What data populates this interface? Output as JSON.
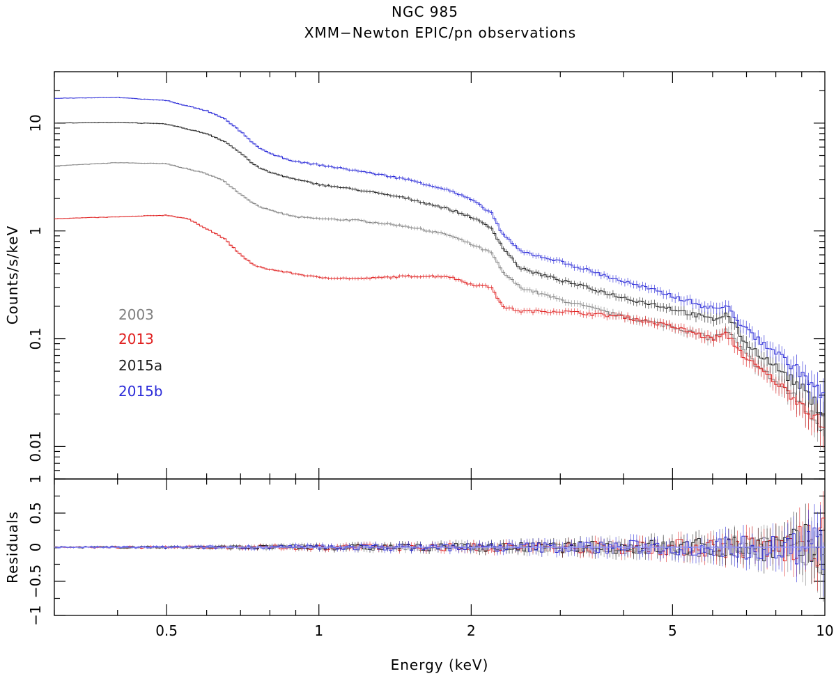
{
  "chart_data": {
    "type": "line",
    "title": "NGC 985",
    "subtitle": "XMM−Newton EPIC/pn observations",
    "xlabel": "Energy (keV)",
    "x_scale": "log",
    "xlim": [
      0.3,
      10
    ],
    "x_ticks": [
      0.5,
      1,
      2,
      5,
      10
    ],
    "x_tick_labels": [
      "0.5",
      "1",
      "2",
      "5",
      "10"
    ],
    "panels": [
      {
        "name": "spectrum",
        "ylabel": "Counts/s/keV",
        "y_scale": "log",
        "ylim": [
          0.005,
          30
        ],
        "y_ticks": [
          0.01,
          0.1,
          1,
          10
        ],
        "y_tick_labels": [
          "0.01",
          "0.1",
          "1",
          "10"
        ]
      },
      {
        "name": "residuals",
        "ylabel": "Residuals",
        "y_scale": "linear",
        "ylim": [
          -1,
          1
        ],
        "y_ticks": [
          -1,
          -0.5,
          0,
          0.5,
          1
        ],
        "y_tick_labels": [
          "−1",
          "−0.5",
          "0",
          "0.5",
          "1"
        ]
      }
    ],
    "legend_placement": "left-middle",
    "series": [
      {
        "name": "2003",
        "color": "#808080",
        "x": [
          0.3,
          0.4,
          0.5,
          0.6,
          0.65,
          0.7,
          0.75,
          0.8,
          0.9,
          1.0,
          1.2,
          1.5,
          1.8,
          2.0,
          2.2,
          2.3,
          2.5,
          3.0,
          4.0,
          5.0,
          6.0,
          6.4,
          7.0,
          8.0,
          9.0,
          10.0
        ],
        "values": [
          4.0,
          4.3,
          4.2,
          3.4,
          2.9,
          2.2,
          1.75,
          1.55,
          1.35,
          1.3,
          1.25,
          1.1,
          0.92,
          0.75,
          0.62,
          0.42,
          0.3,
          0.23,
          0.16,
          0.13,
          0.1,
          0.12,
          0.07,
          0.04,
          0.025,
          0.014
        ]
      },
      {
        "name": "2013",
        "color": "#e02020",
        "x": [
          0.3,
          0.4,
          0.5,
          0.55,
          0.6,
          0.65,
          0.7,
          0.75,
          0.8,
          0.9,
          1.0,
          1.2,
          1.5,
          1.8,
          2.0,
          2.2,
          2.3,
          2.5,
          3.0,
          4.0,
          5.0,
          6.0,
          6.4,
          7.0,
          8.0,
          9.0,
          10.0
        ],
        "values": [
          1.3,
          1.35,
          1.4,
          1.3,
          1.05,
          0.85,
          0.6,
          0.47,
          0.44,
          0.4,
          0.37,
          0.36,
          0.38,
          0.38,
          0.32,
          0.3,
          0.2,
          0.18,
          0.18,
          0.16,
          0.13,
          0.1,
          0.11,
          0.065,
          0.04,
          0.025,
          0.015
        ]
      },
      {
        "name": "2015a",
        "color": "#202020",
        "x": [
          0.3,
          0.4,
          0.5,
          0.6,
          0.65,
          0.7,
          0.75,
          0.8,
          0.9,
          1.0,
          1.2,
          1.5,
          1.8,
          2.0,
          2.2,
          2.3,
          2.5,
          3.0,
          4.0,
          5.0,
          6.0,
          6.4,
          7.0,
          8.0,
          9.0,
          10.0
        ],
        "values": [
          10.0,
          10.2,
          9.8,
          8.0,
          6.8,
          5.3,
          4.0,
          3.5,
          3.0,
          2.7,
          2.4,
          2.0,
          1.6,
          1.35,
          1.05,
          0.72,
          0.45,
          0.35,
          0.24,
          0.19,
          0.15,
          0.17,
          0.09,
          0.055,
          0.035,
          0.02
        ]
      },
      {
        "name": "2015b",
        "color": "#2a2ad8",
        "x": [
          0.3,
          0.4,
          0.5,
          0.6,
          0.65,
          0.7,
          0.75,
          0.8,
          0.9,
          1.0,
          1.2,
          1.5,
          1.8,
          2.0,
          2.2,
          2.3,
          2.5,
          3.0,
          4.0,
          5.0,
          6.0,
          6.4,
          7.0,
          8.0,
          9.0,
          10.0
        ],
        "values": [
          17.0,
          17.3,
          16.2,
          13.0,
          11.0,
          8.4,
          6.2,
          5.2,
          4.4,
          4.1,
          3.6,
          3.0,
          2.4,
          1.95,
          1.45,
          0.95,
          0.65,
          0.52,
          0.34,
          0.25,
          0.19,
          0.2,
          0.12,
          0.075,
          0.048,
          0.028
        ]
      }
    ],
    "residual_scatter": [
      {
        "x": 0.3,
        "amplitude": 0.01
      },
      {
        "x": 1.0,
        "amplitude": 0.04
      },
      {
        "x": 2.0,
        "amplitude": 0.06
      },
      {
        "x": 5.0,
        "amplitude": 0.12
      },
      {
        "x": 8.0,
        "amplitude": 0.22
      },
      {
        "x": 10.0,
        "amplitude": 0.45
      }
    ]
  }
}
